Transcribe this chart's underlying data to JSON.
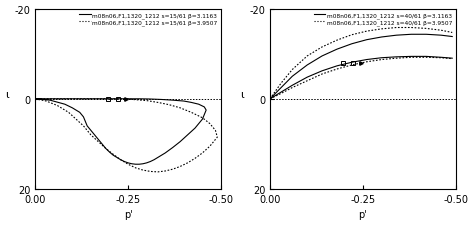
{
  "xlabel": "p'",
  "ylabel": "ι",
  "xlim": [
    0.0,
    -0.5
  ],
  "ylim": [
    20,
    -20
  ],
  "background_color": "#ffffff",
  "fontsize": 7,
  "tick_fontsize": 7,
  "panel1": {
    "legend_solid": "m08n06,F1,1320_1212 s=15/61 β=3.1163",
    "legend_dotted": "m08n06,F1,1320_1212 s=15/61 β=3.9507",
    "solid_loop_p": [
      0.0,
      -0.04,
      -0.08,
      -0.1,
      -0.12,
      -0.13,
      -0.135,
      -0.14,
      -0.15,
      -0.16,
      -0.17,
      -0.18,
      -0.19,
      -0.2,
      -0.21,
      -0.22,
      -0.23,
      -0.24,
      -0.25,
      -0.26,
      -0.27,
      -0.28,
      -0.29,
      -0.3,
      -0.31,
      -0.32,
      -0.33,
      -0.35,
      -0.37,
      -0.39,
      -0.41,
      -0.43,
      -0.44,
      -0.45,
      -0.455,
      -0.46,
      -0.455,
      -0.44,
      -0.42,
      -0.4,
      -0.37,
      -0.34,
      -0.31,
      -0.28,
      -0.25,
      -0.22,
      -0.19,
      -0.16,
      -0.135,
      -0.11,
      -0.08,
      -0.05,
      -0.02,
      0.0
    ],
    "solid_loop_i": [
      0.0,
      0.3,
      1.2,
      2.0,
      3.0,
      4.0,
      5.0,
      6.0,
      7.0,
      8.0,
      9.0,
      10.0,
      11.0,
      11.8,
      12.5,
      13.0,
      13.5,
      13.9,
      14.2,
      14.4,
      14.5,
      14.5,
      14.4,
      14.2,
      13.9,
      13.5,
      13.0,
      12.0,
      10.8,
      9.5,
      8.0,
      6.5,
      5.5,
      4.5,
      3.5,
      2.5,
      1.8,
      1.2,
      0.8,
      0.5,
      0.3,
      0.15,
      0.05,
      0.0,
      0.0,
      0.0,
      0.0,
      0.0,
      0.0,
      0.0,
      0.0,
      0.0,
      0.0,
      0.0
    ],
    "dotted_loop_p": [
      0.0,
      -0.03,
      -0.06,
      -0.09,
      -0.11,
      -0.13,
      -0.14,
      -0.15,
      -0.17,
      -0.19,
      -0.21,
      -0.23,
      -0.25,
      -0.27,
      -0.29,
      -0.31,
      -0.33,
      -0.35,
      -0.37,
      -0.39,
      -0.41,
      -0.43,
      -0.45,
      -0.47,
      -0.48,
      -0.49,
      -0.485,
      -0.47,
      -0.45,
      -0.42,
      -0.39,
      -0.36,
      -0.33,
      -0.3,
      -0.27,
      -0.24,
      -0.21,
      -0.18,
      -0.15,
      -0.12,
      -0.09,
      -0.06,
      -0.03,
      0.0
    ],
    "dotted_loop_i": [
      0.0,
      0.5,
      1.5,
      3.0,
      4.5,
      6.0,
      7.0,
      8.0,
      9.5,
      11.0,
      12.3,
      13.5,
      14.5,
      15.3,
      15.8,
      16.1,
      16.2,
      16.0,
      15.6,
      15.0,
      14.2,
      13.2,
      12.0,
      10.5,
      9.5,
      8.5,
      7.0,
      5.5,
      4.2,
      3.0,
      2.0,
      1.3,
      0.8,
      0.4,
      0.2,
      0.0,
      0.0,
      0.0,
      0.0,
      0.0,
      0.0,
      0.0,
      0.0,
      0.0
    ],
    "marker_sq1_p": -0.195,
    "marker_sq1_i": 0.0,
    "marker_sq2_p": -0.223,
    "marker_sq2_i": 0.0,
    "marker_tri_p": -0.244,
    "marker_tri_i": 0.0
  },
  "panel2": {
    "legend_solid": "m08n06,F1,1320_1212 s=40/61 β=3.1163",
    "legend_dotted": "m08n06,F1,1320_1212 s=40/61 β=3.9507",
    "solid_upper_p": [
      0.0,
      -0.03,
      -0.06,
      -0.1,
      -0.14,
      -0.18,
      -0.22,
      -0.26,
      -0.3,
      -0.34,
      -0.38,
      -0.42,
      -0.46,
      -0.49
    ],
    "solid_upper_i": [
      0.0,
      -1.5,
      -3.0,
      -4.8,
      -6.2,
      -7.3,
      -8.1,
      -8.7,
      -9.1,
      -9.3,
      -9.4,
      -9.4,
      -9.2,
      -9.0
    ],
    "solid_lower_p": [
      0.0,
      -0.03,
      -0.06,
      -0.1,
      -0.14,
      -0.18,
      -0.22,
      -0.26,
      -0.3,
      -0.34,
      -0.38,
      -0.42,
      -0.46,
      -0.49
    ],
    "solid_lower_i": [
      0.0,
      -2.5,
      -5.0,
      -7.5,
      -9.5,
      -11.0,
      -12.2,
      -13.1,
      -13.7,
      -14.1,
      -14.3,
      -14.3,
      -14.1,
      -13.8
    ],
    "dotted_upper_p": [
      0.0,
      -0.03,
      -0.06,
      -0.1,
      -0.14,
      -0.18,
      -0.22,
      -0.26,
      -0.3,
      -0.34,
      -0.38,
      -0.42,
      -0.46,
      -0.49
    ],
    "dotted_upper_i": [
      0.0,
      -1.2,
      -2.5,
      -4.0,
      -5.5,
      -6.6,
      -7.5,
      -8.2,
      -8.7,
      -9.0,
      -9.2,
      -9.2,
      -9.1,
      -8.9
    ],
    "dotted_lower_p": [
      0.0,
      -0.03,
      -0.06,
      -0.1,
      -0.14,
      -0.18,
      -0.22,
      -0.26,
      -0.3,
      -0.34,
      -0.38,
      -0.42,
      -0.46,
      -0.49
    ],
    "dotted_lower_i": [
      0.0,
      -3.5,
      -6.5,
      -9.5,
      -11.5,
      -13.0,
      -14.2,
      -15.0,
      -15.5,
      -15.8,
      -15.8,
      -15.6,
      -15.2,
      -14.7
    ],
    "marker_sq1_p": -0.195,
    "marker_sq1_i": -8.0,
    "marker_sq2_p": -0.223,
    "marker_sq2_i": -8.0,
    "marker_tri_p": -0.244,
    "marker_tri_i": -8.0
  }
}
